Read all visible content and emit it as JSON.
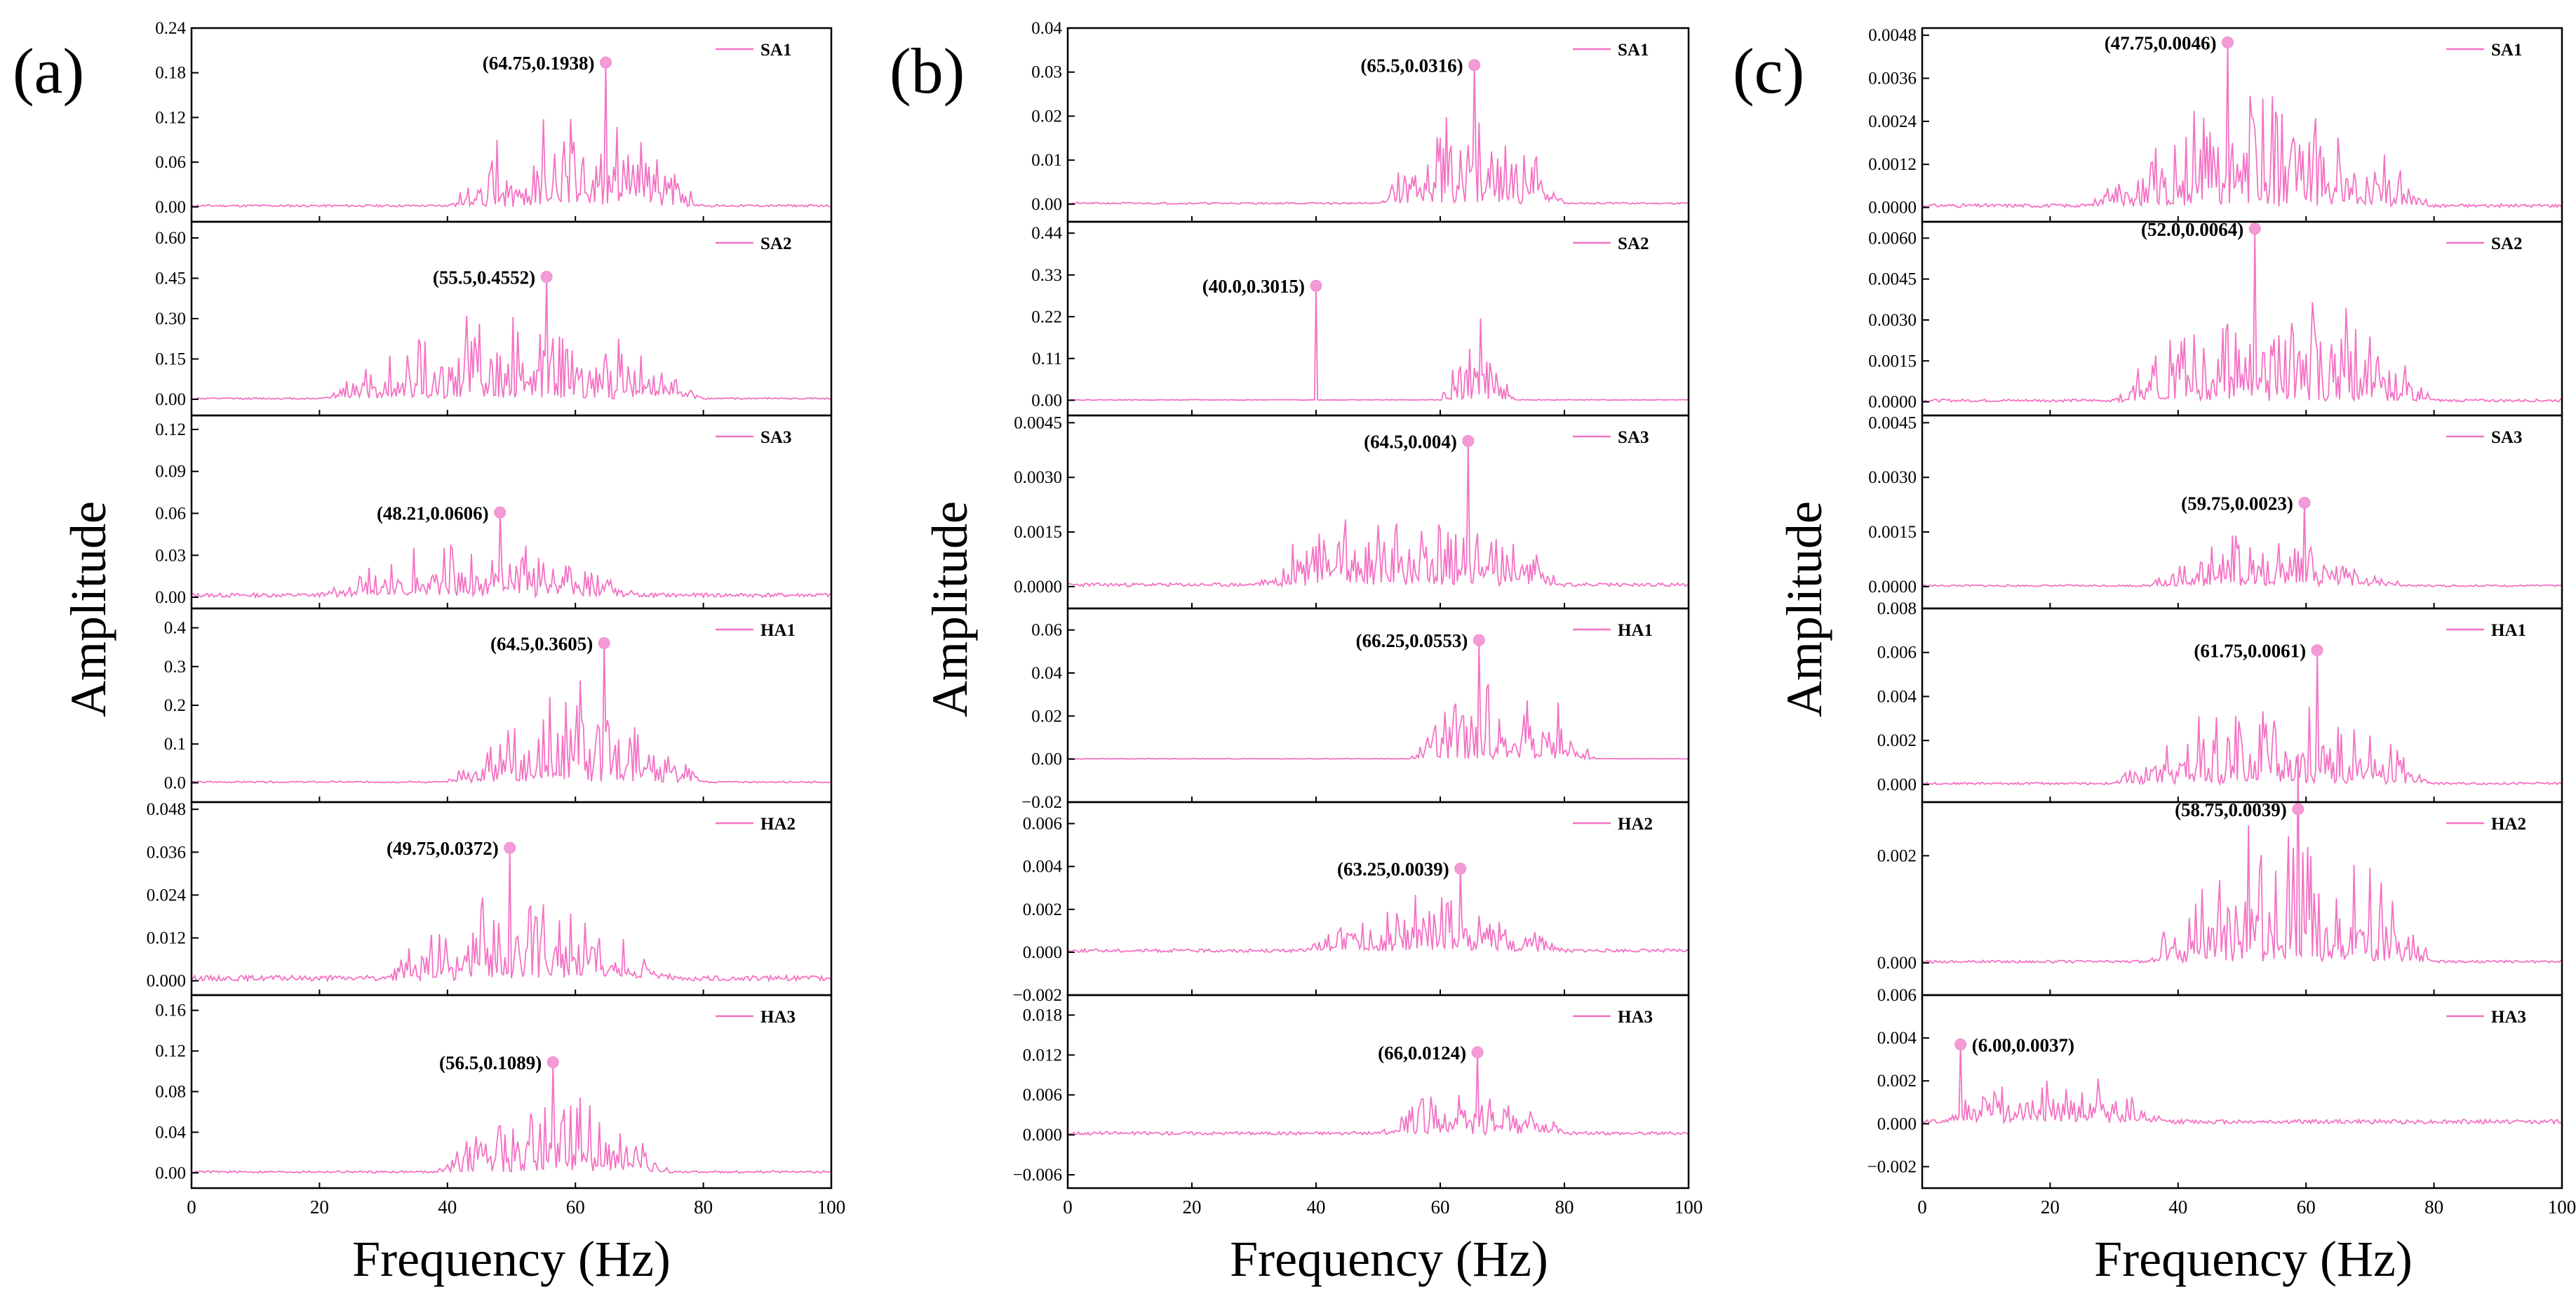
{
  "figure": {
    "x_axis_title": "Frequency  (Hz)",
    "y_axis_title": "Amplitude",
    "line_color": "#f472c4",
    "marker_color": "#f49ad6"
  },
  "chart_data": [
    {
      "panel": "(a)",
      "type": "line",
      "xlabel": "Frequency  (Hz)",
      "ylabel": "Amplitude",
      "xlim": [
        0,
        100
      ],
      "xticks": [
        0,
        20,
        40,
        60,
        80,
        100
      ],
      "xtick_labels": [
        "0",
        "20",
        "40",
        "60",
        "80",
        "100"
      ],
      "subplots": [
        {
          "legend": "SA1",
          "ylim": [
            -0.02,
            0.24
          ],
          "yticks": [
            0.0,
            0.06,
            0.12,
            0.18,
            0.24
          ],
          "ytick_labels": [
            "0.00",
            "0.06",
            "0.12",
            "0.18",
            "0.24"
          ],
          "peak": {
            "x": 64.75,
            "y": 0.1938,
            "label": "(64.75,0.1938)"
          },
          "noise": 0.003,
          "band": [
            40,
            80
          ],
          "seed": 11
        },
        {
          "legend": "SA2",
          "ylim": [
            -0.06,
            0.66
          ],
          "yticks": [
            0.0,
            0.15,
            0.3,
            0.45,
            0.6
          ],
          "ytick_labels": [
            "0.00",
            "0.15",
            "0.30",
            "0.45",
            "0.60"
          ],
          "peak": {
            "x": 55.5,
            "y": 0.4552,
            "label": "(55.5,0.4552)"
          },
          "noise": 0.006,
          "band": [
            20,
            80
          ],
          "seed": 12
        },
        {
          "legend": "SA3",
          "ylim": [
            -0.008,
            0.13
          ],
          "yticks": [
            0.0,
            0.03,
            0.06,
            0.09,
            0.12
          ],
          "ytick_labels": [
            "0.00",
            "0.03",
            "0.06",
            "0.09",
            "0.12"
          ],
          "peak": {
            "x": 48.21,
            "y": 0.0606,
            "label": "(48.21,0.0606)"
          },
          "noise": 0.003,
          "band": [
            20,
            70
          ],
          "seed": 13
        },
        {
          "legend": "HA1",
          "ylim": [
            -0.05,
            0.45
          ],
          "yticks": [
            0.0,
            0.1,
            0.2,
            0.3,
            0.4
          ],
          "ytick_labels": [
            "0.0",
            "0.1",
            "0.2",
            "0.3",
            "0.4"
          ],
          "peak": {
            "x": 64.5,
            "y": 0.3605,
            "label": "(64.5,0.3605)"
          },
          "noise": 0.004,
          "band": [
            40,
            80
          ],
          "seed": 14
        },
        {
          "legend": "HA2",
          "ylim": [
            -0.004,
            0.05
          ],
          "yticks": [
            0.0,
            0.012,
            0.024,
            0.036,
            0.048
          ],
          "ytick_labels": [
            "0.000",
            "0.012",
            "0.024",
            "0.036",
            "0.048"
          ],
          "peak": {
            "x": 49.75,
            "y": 0.0372,
            "label": "(49.75,0.0372)"
          },
          "noise": 0.0015,
          "band": [
            30,
            75
          ],
          "seed": 15
        },
        {
          "legend": "HA3",
          "ylim": [
            -0.015,
            0.175
          ],
          "yticks": [
            0.0,
            0.04,
            0.08,
            0.12,
            0.16
          ],
          "ytick_labels": [
            "0.00",
            "0.04",
            "0.08",
            "0.12",
            "0.16"
          ],
          "peak": {
            "x": 56.5,
            "y": 0.1089,
            "label": "(56.5,0.1089)"
          },
          "noise": 0.002,
          "band": [
            38,
            75
          ],
          "seed": 16
        }
      ]
    },
    {
      "panel": "(b)",
      "type": "line",
      "xlabel": "Frequency  (Hz)",
      "ylabel": "Amplitude",
      "xlim": [
        0,
        100
      ],
      "xticks": [
        0,
        20,
        40,
        60,
        80,
        100
      ],
      "xtick_labels": [
        "0",
        "20",
        "40",
        "60",
        "80",
        "100"
      ],
      "subplots": [
        {
          "legend": "SA1",
          "ylim": [
            -0.004,
            0.04
          ],
          "yticks": [
            0.0,
            0.01,
            0.02,
            0.03,
            0.04
          ],
          "ytick_labels": [
            "0.00",
            "0.01",
            "0.02",
            "0.03",
            "0.04"
          ],
          "peak": {
            "x": 65.5,
            "y": 0.0316,
            "label": "(65.5,0.0316)"
          },
          "noise": 0.0004,
          "band": [
            50,
            80
          ],
          "seed": 21
        },
        {
          "legend": "SA2",
          "ylim": [
            -0.04,
            0.47
          ],
          "yticks": [
            0.0,
            0.11,
            0.22,
            0.33,
            0.44
          ],
          "ytick_labels": [
            "0.00",
            "0.11",
            "0.22",
            "0.33",
            "0.44"
          ],
          "peak": {
            "x": 40.0,
            "y": 0.3015,
            "label": "(40.0,0.3015)"
          },
          "noise": 0.002,
          "band": [
            60,
            72
          ],
          "seed": 22
        },
        {
          "legend": "SA3",
          "ylim": [
            -0.0006,
            0.0047
          ],
          "yticks": [
            0.0,
            0.0015,
            0.003,
            0.0045
          ],
          "ytick_labels": [
            "0.0000",
            "0.0015",
            "0.0030",
            "0.0045"
          ],
          "peak": {
            "x": 64.5,
            "y": 0.004,
            "label": "(64.5,0.004)"
          },
          "noise": 0.0001,
          "band": [
            30,
            80
          ],
          "seed": 23
        },
        {
          "legend": "HA1",
          "ylim": [
            -0.02,
            0.07
          ],
          "yticks": [
            -0.02,
            0.0,
            0.02,
            0.04,
            0.06
          ],
          "ytick_labels": [
            "−0.02",
            "0.00",
            "0.02",
            "0.04",
            "0.06"
          ],
          "peak": {
            "x": 66.25,
            "y": 0.0553,
            "label": "(66.25,0.0553)"
          },
          "noise": 0.0003,
          "band": [
            55,
            85
          ],
          "seed": 24
        },
        {
          "legend": "HA2",
          "ylim": [
            -0.002,
            0.007
          ],
          "yticks": [
            -0.002,
            0.0,
            0.002,
            0.004,
            0.006
          ],
          "ytick_labels": [
            "−0.002",
            "0.000",
            "0.002",
            "0.004",
            "0.006"
          ],
          "peak": {
            "x": 63.25,
            "y": 0.0039,
            "label": "(63.25,0.0039)"
          },
          "noise": 0.00015,
          "band": [
            38,
            80
          ],
          "seed": 25
        },
        {
          "legend": "HA3",
          "ylim": [
            -0.008,
            0.021
          ],
          "yticks": [
            -0.006,
            0.0,
            0.006,
            0.012,
            0.018
          ],
          "ytick_labels": [
            "−0.006",
            "0.000",
            "0.006",
            "0.012",
            "0.018"
          ],
          "peak": {
            "x": 66.0,
            "y": 0.0124,
            "label": "(66,0.0124)"
          },
          "noise": 0.0005,
          "band": [
            50,
            80
          ],
          "seed": 26
        }
      ]
    },
    {
      "panel": "(c)",
      "type": "line",
      "xlabel": "Frequency  (Hz)",
      "ylabel": "Amplitude",
      "xlim": [
        0,
        100
      ],
      "xticks": [
        0,
        20,
        40,
        60,
        80,
        100
      ],
      "xtick_labels": [
        "0",
        "20",
        "40",
        "60",
        "80",
        "100"
      ],
      "subplots": [
        {
          "legend": "SA1",
          "ylim": [
            -0.0004,
            0.005
          ],
          "yticks": [
            0.0,
            0.0012,
            0.0024,
            0.0036,
            0.0048
          ],
          "ytick_labels": [
            "0.0000",
            "0.0012",
            "0.0024",
            "0.0036",
            "0.0048"
          ],
          "peak": {
            "x": 47.75,
            "y": 0.0046,
            "label": "(47.75,0.0046)"
          },
          "noise": 0.0001,
          "band": [
            25,
            80
          ],
          "seed": 31
        },
        {
          "legend": "SA2",
          "ylim": [
            -0.0005,
            0.0066
          ],
          "yticks": [
            0.0,
            0.0015,
            0.003,
            0.0045,
            0.006
          ],
          "ytick_labels": [
            "0.0000",
            "0.0015",
            "0.0030",
            "0.0045",
            "0.0060"
          ],
          "peak": {
            "x": 52.0,
            "y": 0.0064,
            "label": "(52.0,0.0064)"
          },
          "noise": 0.0001,
          "band": [
            30,
            80
          ],
          "seed": 32
        },
        {
          "legend": "SA3",
          "ylim": [
            -0.0006,
            0.0047
          ],
          "yticks": [
            0.0,
            0.0015,
            0.003,
            0.0045
          ],
          "ytick_labels": [
            "0.0000",
            "0.0015",
            "0.0030",
            "0.0045"
          ],
          "peak": {
            "x": 59.75,
            "y": 0.0023,
            "label": "(59.75,0.0023)"
          },
          "noise": 5e-05,
          "band": [
            35,
            75
          ],
          "seed": 33
        },
        {
          "legend": "HA1",
          "ylim": [
            -0.0008,
            0.008
          ],
          "yticks": [
            0.0,
            0.002,
            0.004,
            0.006,
            0.008
          ],
          "ytick_labels": [
            "0.000",
            "0.002",
            "0.004",
            "0.006",
            "0.008"
          ],
          "peak": {
            "x": 61.75,
            "y": 0.0061,
            "label": "(61.75,0.0061)"
          },
          "noise": 0.0001,
          "band": [
            30,
            80
          ],
          "seed": 34
        },
        {
          "legend": "HA2",
          "ylim": [
            -0.0006,
            0.003
          ],
          "yticks": [
            0.0,
            0.002
          ],
          "ytick_labels": [
            "0.000",
            "0.002"
          ],
          "peak": {
            "x": 58.75,
            "y": 0.0039,
            "label": "(58.75,0.0039)"
          },
          "noise": 5e-05,
          "band": [
            35,
            80
          ],
          "seed": 35
        },
        {
          "legend": "HA3",
          "ylim": [
            -0.003,
            0.006
          ],
          "yticks": [
            -0.002,
            0.0,
            0.002,
            0.004,
            0.006
          ],
          "ytick_labels": [
            "−0.002",
            "0.000",
            "0.002",
            "0.004",
            "0.006"
          ],
          "peak": {
            "x": 6.0,
            "y": 0.0037,
            "label": "(6.00,0.0037)"
          },
          "noise": 0.0002,
          "band": [
            3,
            38
          ],
          "seed": 36
        }
      ]
    }
  ]
}
